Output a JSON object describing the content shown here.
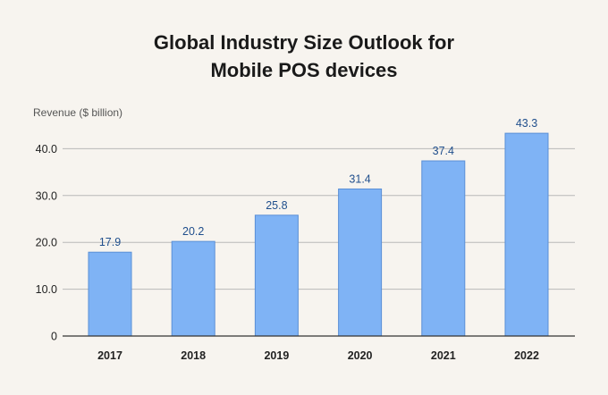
{
  "chart_data": {
    "type": "bar",
    "title_line1": "Global Industry Size Outlook for",
    "title_line2": "Mobile POS devices",
    "ylabel": "Revenue ($ billion)",
    "xlabel": "",
    "categories": [
      "2017",
      "2018",
      "2019",
      "2020",
      "2021",
      "2022"
    ],
    "values": [
      17.9,
      20.2,
      25.8,
      31.4,
      37.4,
      43.3
    ],
    "data_labels": [
      "17.9",
      "20.2",
      "25.8",
      "31.4",
      "37.4",
      "43.3"
    ],
    "ylim": [
      0,
      44
    ],
    "yticks": [
      0,
      10,
      20,
      30,
      40
    ],
    "ytick_labels": [
      "0",
      "10.0",
      "20.0",
      "30.0",
      "40.0"
    ],
    "grid": true,
    "colors": {
      "bar_fill": "#7fb3f5",
      "bar_stroke": "#5a8fd6",
      "label": "#1f4e8c"
    }
  }
}
